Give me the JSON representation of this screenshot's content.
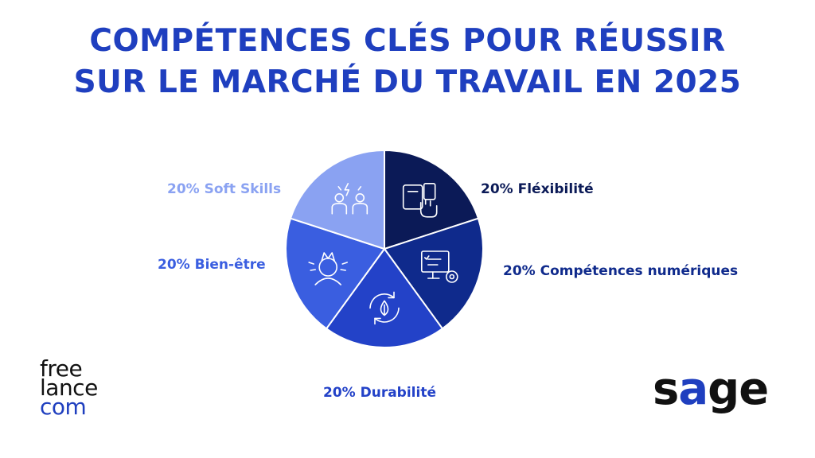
{
  "title": {
    "line1": "COMPÉTENCES CLÉS POUR RÉUSSIR",
    "line2": "SUR LE MARCHÉ DU TRAVAIL EN 2025"
  },
  "chart_data": {
    "type": "pie",
    "title": "COMPÉTENCES CLÉS POUR RÉUSSIR SUR LE MARCHÉ DU TRAVAIL EN 2025",
    "slices": [
      {
        "label": "20% Fléxibilité",
        "name": "Fléxibilité",
        "value": 20,
        "color": "#0b1a57",
        "label_color": "#0b1a57",
        "icon": "devices-touch-icon"
      },
      {
        "label": "20% Compétences numériques",
        "name": "Compétences numériques",
        "value": 20,
        "color": "#0f2a8c",
        "label_color": "#0f2a8c",
        "icon": "screen-gear-icon"
      },
      {
        "label": "20% Durabilité",
        "name": "Durabilité",
        "value": 20,
        "color": "#2342c8",
        "label_color": "#2342c8",
        "icon": "leaf-cycle-icon"
      },
      {
        "label": "20% Bien-être",
        "name": "Bien-être",
        "value": 20,
        "color": "#3a5ee0",
        "label_color": "#3a5ee0",
        "icon": "wellbeing-head-icon"
      },
      {
        "label": "20% Soft Skills",
        "name": "Soft Skills",
        "value": 20,
        "color": "#8aa2f2",
        "label_color": "#8aa2f2",
        "icon": "people-spark-icon"
      }
    ]
  },
  "logos": {
    "freelance": {
      "line1": "free",
      "line2": "lance",
      "line3": "com"
    },
    "sage": {
      "s": "s",
      "a": "a",
      "ge": "ge"
    }
  },
  "colors": {
    "accent": "#1f3fbf",
    "dark": "#111111"
  }
}
